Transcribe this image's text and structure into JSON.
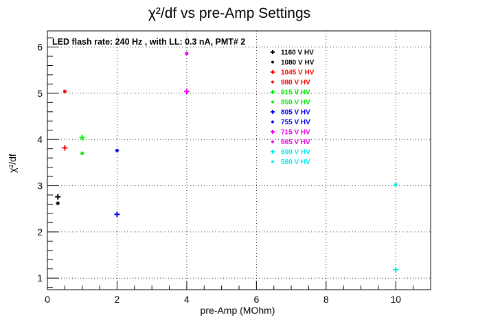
{
  "chart_data": {
    "type": "scatter",
    "title": "χ²/df vs pre-Amp Settings",
    "subtitle": "LED flash rate: 240 Hz , with LL: 0.3 nA, PMT# 2",
    "xlabel": "pre-Amp (MOhm)",
    "ylabel": "χ²/df",
    "xlim": [
      0,
      11
    ],
    "ylim": [
      0.75,
      6.35
    ],
    "xticks": [
      0,
      2,
      4,
      6,
      8,
      10
    ],
    "yticks": [
      1,
      2,
      3,
      4,
      5,
      6
    ],
    "grid": true,
    "legend_position": "top-right",
    "series": [
      {
        "name": "1160 V HV",
        "color": "#000000",
        "marker": "plus",
        "points": [
          [
            0.3,
            2.76
          ]
        ]
      },
      {
        "name": "1080 V HV",
        "color": "#000000",
        "marker": "star",
        "points": [
          [
            0.3,
            2.62
          ]
        ]
      },
      {
        "name": "1045 V HV",
        "color": "#ff0000",
        "marker": "plus",
        "points": [
          [
            0.5,
            3.82
          ]
        ]
      },
      {
        "name": "980 V HV",
        "color": "#ff0000",
        "marker": "star",
        "points": [
          [
            0.5,
            5.04
          ]
        ]
      },
      {
        "name": "915 V HV",
        "color": "#00ee00",
        "marker": "plus",
        "points": [
          [
            1.0,
            4.04
          ]
        ]
      },
      {
        "name": "850 V HV",
        "color": "#00ee00",
        "marker": "star",
        "points": [
          [
            1.0,
            3.7
          ]
        ]
      },
      {
        "name": "805 V HV",
        "color": "#0000ff",
        "marker": "plus",
        "points": [
          [
            2.0,
            2.38
          ]
        ]
      },
      {
        "name": "755 V HV",
        "color": "#0000ff",
        "marker": "star",
        "points": [
          [
            2.0,
            3.76
          ]
        ]
      },
      {
        "name": "715 V HV",
        "color": "#ee00ee",
        "marker": "plus",
        "points": [
          [
            4.0,
            5.04
          ]
        ]
      },
      {
        "name": "665 V HV",
        "color": "#ee00ee",
        "marker": "star",
        "points": [
          [
            4.0,
            5.86
          ]
        ]
      },
      {
        "name": "600 V HV",
        "color": "#00eeee",
        "marker": "plus",
        "points": [
          [
            10.0,
            1.18
          ]
        ]
      },
      {
        "name": "560 V HV",
        "color": "#00eeee",
        "marker": "star",
        "points": [
          [
            10.0,
            3.02
          ]
        ]
      }
    ]
  }
}
